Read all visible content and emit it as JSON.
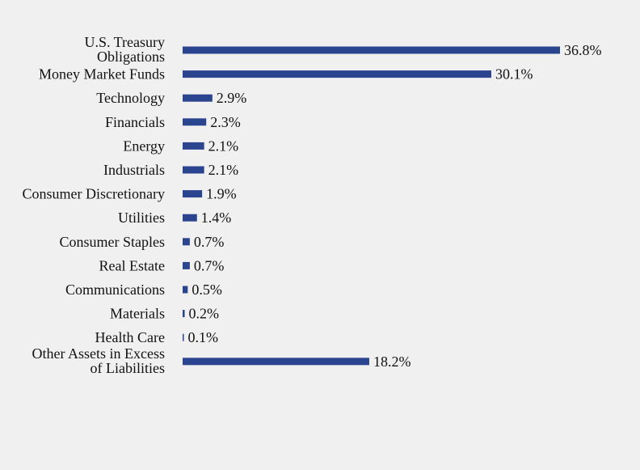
{
  "chart_data": {
    "type": "bar",
    "orientation": "horizontal",
    "categories": [
      "U.S. Treasury Obligations",
      "Money Market Funds",
      "Technology",
      "Financials",
      "Energy",
      "Industrials",
      "Consumer Discretionary",
      "Utilities",
      "Consumer Staples",
      "Real Estate",
      "Communications",
      "Materials",
      "Health Care",
      "Other Assets in Excess of Liabilities"
    ],
    "values": [
      36.8,
      30.1,
      2.9,
      2.3,
      2.1,
      2.1,
      1.9,
      1.4,
      0.7,
      0.7,
      0.5,
      0.2,
      0.1,
      18.2
    ],
    "value_labels": [
      "36.8%",
      "30.1%",
      "2.9%",
      "2.3%",
      "2.1%",
      "2.1%",
      "1.9%",
      "1.4%",
      "0.7%",
      "0.7%",
      "0.5%",
      "0.2%",
      "0.1%",
      "18.2%"
    ],
    "unit": "%",
    "xlim": [
      0,
      36.8
    ],
    "grid": false,
    "bar_color": "#2b4490"
  }
}
